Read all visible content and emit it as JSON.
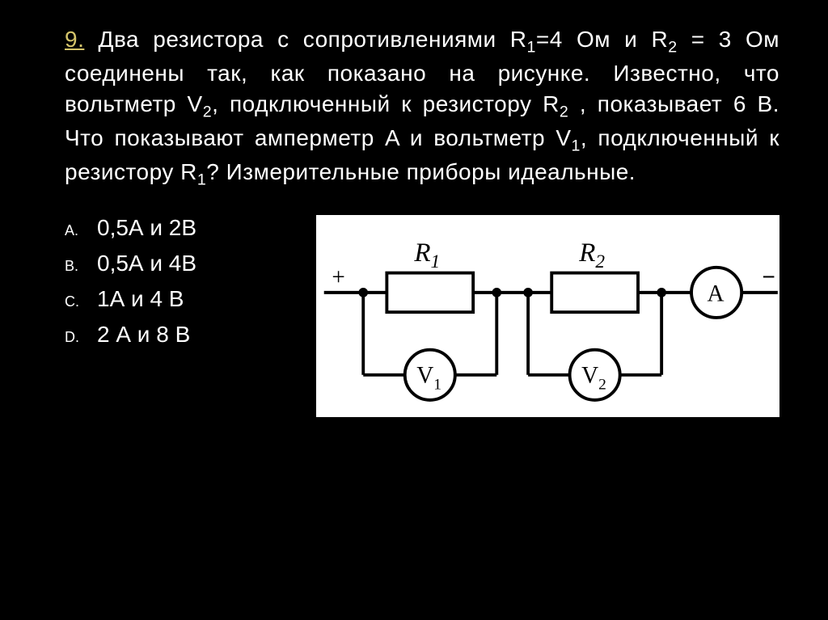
{
  "problem": {
    "number": "9.",
    "text_html": "Два резистора с сопротивлениями R<sub>1</sub>=4 Ом и R<sub>2</sub> = 3 Ом соединены так, как показано на рисунке. Известно, что вольтметр V<sub>2</sub>, подключенный к резистору R<sub>2</sub> , показывает 6 В. Что показывают амперметр A и вольтметр V<sub>1</sub>, подключенный к резистору R<sub>1</sub>? Измерительные приборы идеальные."
  },
  "options": [
    {
      "letter": "A.",
      "text": "0,5А и 2В"
    },
    {
      "letter": "B.",
      "text": "0,5А и 4В"
    },
    {
      "letter": "C.",
      "text": "1А и 4 В"
    },
    {
      "letter": "D.",
      "text": "2 А и 8 В"
    }
  ],
  "circuit": {
    "background_color": "#ffffff",
    "stroke_color": "#000000",
    "stroke_width": 4,
    "labels": {
      "plus": "+",
      "minus": "−",
      "R1": "R",
      "R1_sub": "1",
      "R2": "R",
      "R2_sub": "2",
      "A": "A",
      "V1": "V",
      "V1_sub": "1",
      "V2": "V",
      "V2_sub": "2"
    },
    "font_sizes": {
      "main_label": 34,
      "sub_label": 24,
      "meter_label": 30,
      "meter_sub": 20,
      "sign": 30
    }
  }
}
